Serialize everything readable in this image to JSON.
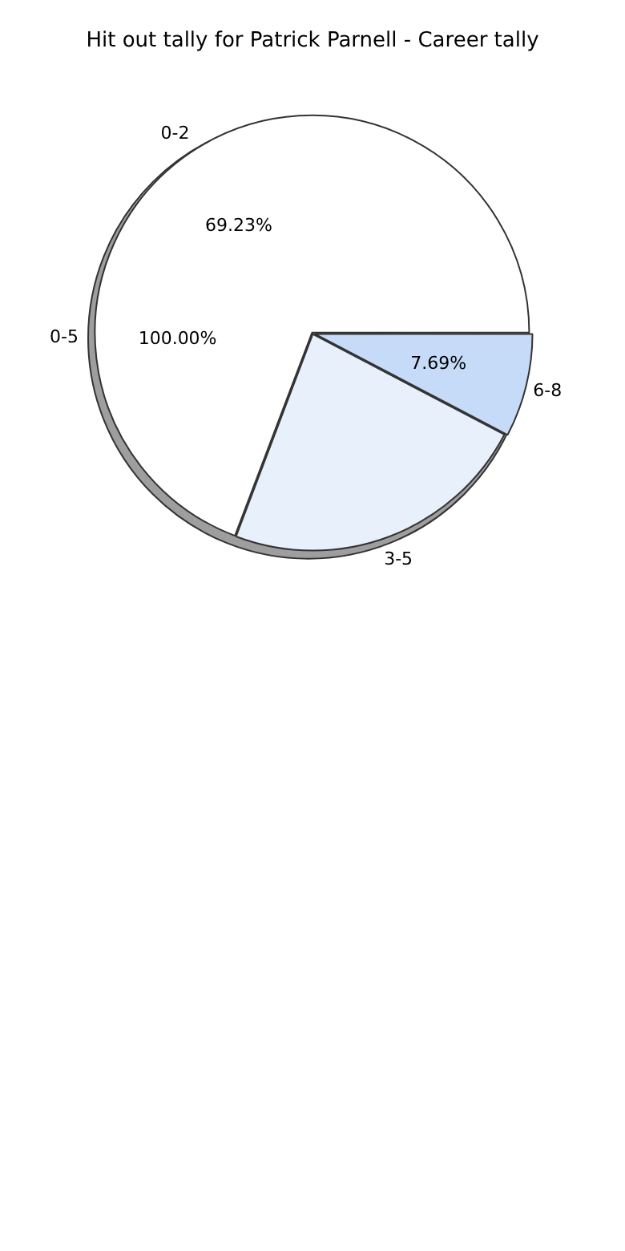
{
  "chart_data": [
    {
      "type": "pie",
      "title": "Hit out tally for Patrick Parnell - Career tally",
      "categories": [
        "6-8",
        "3-5",
        "0-2"
      ],
      "values": [
        7.69,
        23.08,
        69.23
      ],
      "colors": [
        "#c6dbf7",
        "#e8f0fc",
        "#ffffff"
      ],
      "value_labels": [
        "7.69%",
        null,
        "69.23%"
      ],
      "legend": false
    },
    {
      "type": "pie",
      "categories": [
        "0-5"
      ],
      "values": [
        100
      ],
      "colors": [
        "#9e9e9e"
      ],
      "value_labels": [
        "100.00%"
      ],
      "legend": false
    }
  ]
}
